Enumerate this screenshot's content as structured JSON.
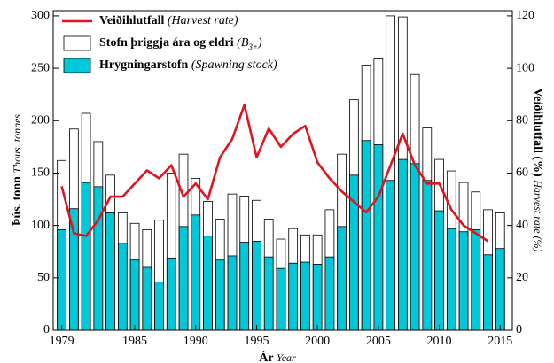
{
  "chart_data": {
    "type": "bar_line",
    "x": [
      1979,
      1980,
      1981,
      1982,
      1983,
      1984,
      1985,
      1986,
      1987,
      1988,
      1989,
      1990,
      1991,
      1992,
      1993,
      1994,
      1995,
      1996,
      1997,
      1998,
      1999,
      2000,
      2001,
      2002,
      2003,
      2004,
      2005,
      2006,
      2007,
      2008,
      2009,
      2010,
      2011,
      2012,
      2013,
      2014,
      2015
    ],
    "series": [
      {
        "name": "Stofn þriggja ára og eldri",
        "name_note": [
          "(B",
          "3+",
          ")"
        ],
        "type": "bar",
        "color": "#ffffff",
        "values": [
          162,
          192,
          207,
          180,
          148,
          112,
          102,
          96,
          105,
          150,
          168,
          145,
          123,
          106,
          130,
          128,
          124,
          106,
          87,
          97,
          91,
          91,
          115,
          168,
          220,
          253,
          259,
          300,
          299,
          244,
          193,
          163,
          152,
          141,
          132,
          115,
          112
        ]
      },
      {
        "name": "Hrygningarstofn",
        "name_note": [
          "(Spawning stock)"
        ],
        "type": "bar",
        "color": "#00c8d8",
        "values": [
          96,
          116,
          141,
          137,
          112,
          83,
          67,
          60,
          46,
          69,
          99,
          110,
          90,
          67,
          71,
          84,
          85,
          70,
          59,
          64,
          65,
          63,
          70,
          99,
          148,
          181,
          177,
          143,
          163,
          159,
          143,
          114,
          97,
          94,
          96,
          72,
          78
        ]
      },
      {
        "name": "Veiðihlutfall",
        "name_note": [
          "(Harvest rate)"
        ],
        "type": "line",
        "axis": "y2",
        "color": "#e0141e",
        "values": [
          55,
          37,
          36,
          42,
          51,
          51,
          56,
          61,
          58,
          63,
          51,
          56,
          50,
          66,
          73,
          86,
          66,
          77,
          70,
          75,
          78,
          64,
          58,
          53,
          49,
          45,
          51,
          63,
          75,
          63,
          56,
          56,
          46,
          40,
          37,
          34,
          null
        ]
      }
    ],
    "xlim": [
      1978.3,
      2016.0
    ],
    "xticks": [
      1979,
      1985,
      1990,
      1995,
      2000,
      2005,
      2010,
      2015
    ],
    "ylim": [
      0,
      305
    ],
    "yticks": [
      0,
      50,
      100,
      150,
      200,
      250,
      300
    ],
    "y2lim": [
      0,
      122
    ],
    "y2ticks": [
      0,
      20,
      40,
      60,
      80,
      100,
      120
    ],
    "x_label": [
      "Ár",
      "Year"
    ],
    "y_label": [
      "Þús. tonn",
      "Thous. tonnes"
    ],
    "y2_label": [
      "Veiðihlutfall (%)",
      "Harvest rate (%)"
    ],
    "legend": "upper left"
  }
}
